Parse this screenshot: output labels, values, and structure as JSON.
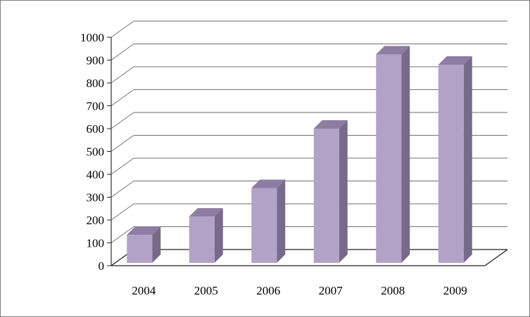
{
  "chart_data": {
    "type": "bar",
    "categories": [
      "2004",
      "2005",
      "2006",
      "2007",
      "2008",
      "2009"
    ],
    "values": [
      135,
      215,
      340,
      600,
      925,
      880
    ],
    "ylim": [
      0,
      1000
    ],
    "yticks": [
      0,
      100,
      200,
      300,
      400,
      500,
      600,
      700,
      800,
      900,
      1000
    ],
    "grid": true,
    "legend": "none",
    "colors": {
      "bar_front": "#b3a2c7",
      "bar_top": "#8d7da3",
      "bar_side": "#786a8a",
      "grid": "#000000"
    }
  }
}
